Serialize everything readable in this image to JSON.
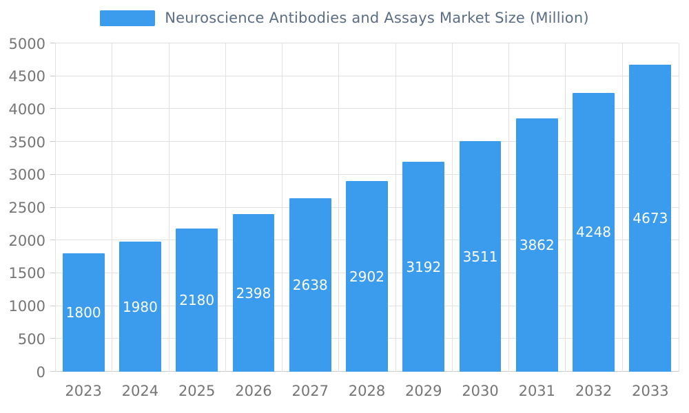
{
  "chart_data": {
    "type": "bar",
    "title": "Neuroscience Antibodies and Assays Market Size (Million)",
    "categories": [
      "2023",
      "2024",
      "2025",
      "2026",
      "2027",
      "2028",
      "2029",
      "2030",
      "2031",
      "2032",
      "2033"
    ],
    "values": [
      1800,
      1980,
      2180,
      2398,
      2638,
      2902,
      3192,
      3511,
      3862,
      4248,
      4673
    ],
    "xlabel": "",
    "ylabel": "",
    "ylim": [
      0,
      5000
    ],
    "ytick_step": 500,
    "grid": true,
    "legend_position": "top",
    "value_labels": "inside-center",
    "colors": {
      "bar": "#3b9cee",
      "title": "#5b6d85",
      "tick_label": "#757575",
      "gridline": "#e1e1e1",
      "axis_line": "#c9c9c9",
      "value_label": "#ffffff"
    }
  }
}
